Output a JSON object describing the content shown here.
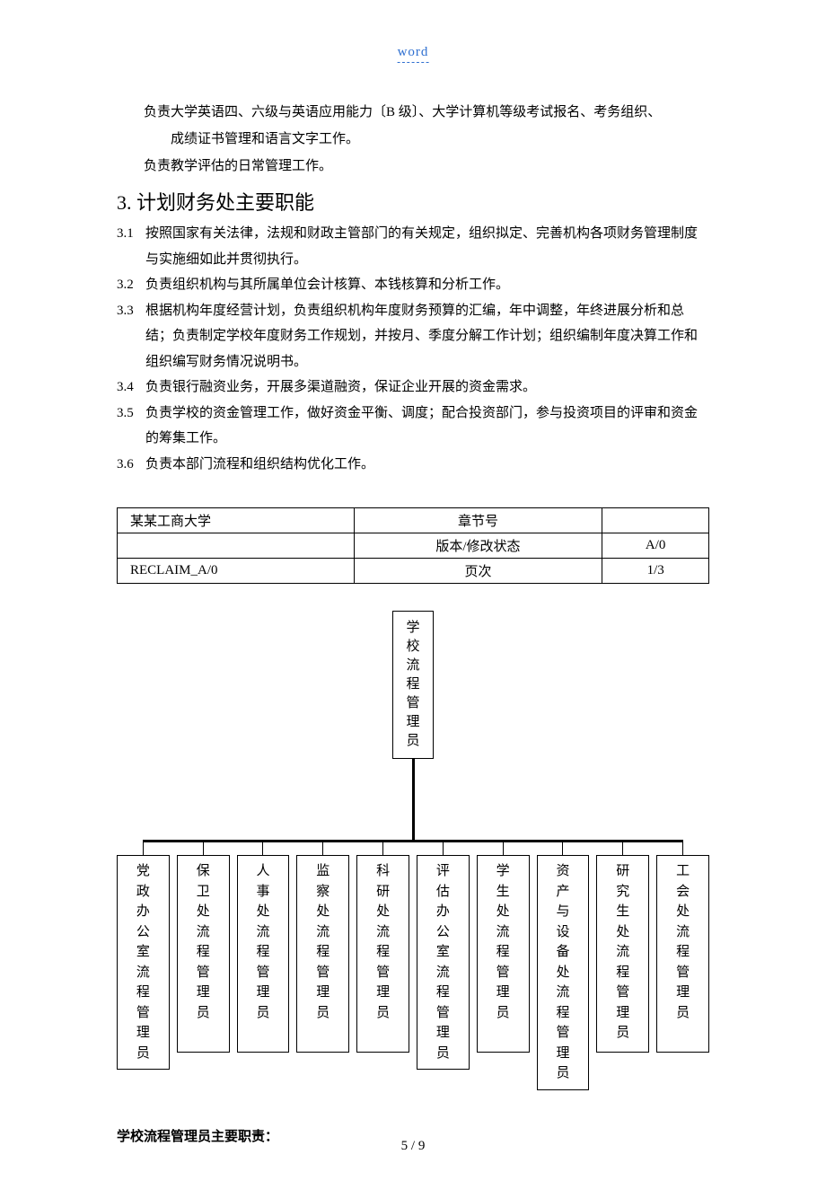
{
  "header": {
    "watermark": "word"
  },
  "intro": {
    "line1": "负责大学英语四、六级与英语应用能力〔B 级〕、大学计算机等级考试报名、考务组织、",
    "line2": "成绩证书管理和语言文字工作。",
    "line3": "负责教学评估的日常管理工作。"
  },
  "section": {
    "heading": "3. 计划财务处主要职能"
  },
  "items": [
    {
      "num": "3.1",
      "text": "按照国家有关法律，法规和财政主管部门的有关规定，组织拟定、完善机构各项财务管理制度与实施细如此并贯彻执行。"
    },
    {
      "num": "3.2",
      "text": "负责组织机构与其所属单位会计核算、本钱核算和分析工作。"
    },
    {
      "num": "3.3",
      "text": "根据机构年度经营计划，负责组织机构年度财务预算的汇编，年中调整，年终进展分析和总结；负责制定学校年度财务工作规划，并按月、季度分解工作计划；组织编制年度决算工作和组织编写财务情况说明书。"
    },
    {
      "num": "3.4",
      "text": "负责银行融资业务，开展多渠道融资，保证企业开展的资金需求。"
    },
    {
      "num": "3.5",
      "text": "负责学校的资金管理工作，做好资金平衡、调度；配合投资部门，参与投资项目的评审和资金的筹集工作。"
    },
    {
      "num": "3.6",
      "text": "负责本部门流程和组织结构优化工作。"
    }
  ],
  "info_table": {
    "r1c1": "某某工商大学",
    "r1c2": "章节号",
    "r1c3": "",
    "r2c1": "",
    "r2c2": "版本/修改状态",
    "r2c3": "A/0",
    "r3c1": "RECLAIM_A/0",
    "r3c2": "页次",
    "r3c3": "1/3"
  },
  "org_chart": {
    "root": "学校流程管理员",
    "children": [
      "党政办公室流程管理员",
      "保卫处流程管理员",
      "人事处流程管理员",
      "监察处流程管理员",
      "科研处流程管理员",
      "评估办公室流程管理员",
      "学生处流程管理员",
      "资产与设备处流程管理员",
      "研究生处流程管理员",
      "工会处流程管理员"
    ],
    "line_color": "#000000"
  },
  "subheading": "学校流程管理员主要职责：",
  "footer": {
    "page_number": "5 / 9"
  }
}
